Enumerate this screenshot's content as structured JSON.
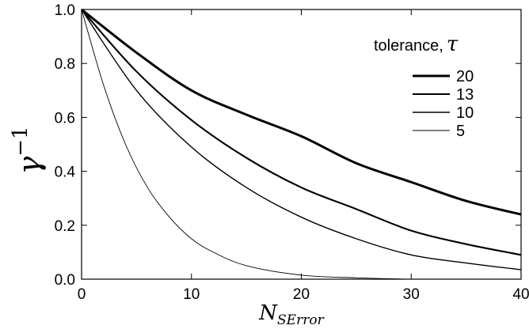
{
  "chart_data": {
    "type": "line",
    "xlabel": "N",
    "xlabel_subscript": "SError",
    "ylabel": "γ",
    "ylabel_superscript": "−1",
    "xlim": [
      0,
      40
    ],
    "ylim": [
      0,
      1.0
    ],
    "x_ticks": [
      0,
      10,
      20,
      30,
      40
    ],
    "x_tick_labels": [
      "0",
      "10",
      "20",
      "30",
      "40"
    ],
    "y_ticks": [
      0,
      0.2,
      0.4,
      0.6,
      0.8,
      1.0
    ],
    "y_tick_labels": [
      "0.0",
      "0.2",
      "0.4",
      "0.6",
      "0.8",
      "1.0"
    ],
    "grid": false,
    "legend": {
      "title": "tolerance,",
      "title_symbol": "τ",
      "placement": "top-right"
    },
    "color": "#000000",
    "series": [
      {
        "name": "20",
        "stroke": 3,
        "x": [
          0,
          5,
          10,
          15,
          20,
          25,
          30,
          35,
          40
        ],
        "y": [
          1.0,
          0.84,
          0.7,
          0.61,
          0.53,
          0.43,
          0.36,
          0.29,
          0.24
        ]
      },
      {
        "name": "13",
        "stroke": 2.1,
        "x": [
          0,
          5,
          10,
          15,
          20,
          25,
          30,
          35,
          40
        ],
        "y": [
          1.0,
          0.77,
          0.59,
          0.45,
          0.34,
          0.26,
          0.18,
          0.13,
          0.09
        ]
      },
      {
        "name": "10",
        "stroke": 1.4,
        "x": [
          0,
          5,
          10,
          15,
          20,
          25,
          30,
          35,
          40
        ],
        "y": [
          1.0,
          0.7,
          0.49,
          0.34,
          0.23,
          0.15,
          0.09,
          0.06,
          0.035
        ]
      },
      {
        "name": "5",
        "stroke": 0.9,
        "x": [
          0,
          2,
          4,
          6,
          8,
          10,
          12,
          15,
          20,
          25,
          30,
          35,
          40
        ],
        "y": [
          1.0,
          0.72,
          0.5,
          0.34,
          0.23,
          0.15,
          0.1,
          0.05,
          0.015,
          0.005,
          0.0,
          0.0,
          0.0
        ]
      }
    ]
  }
}
